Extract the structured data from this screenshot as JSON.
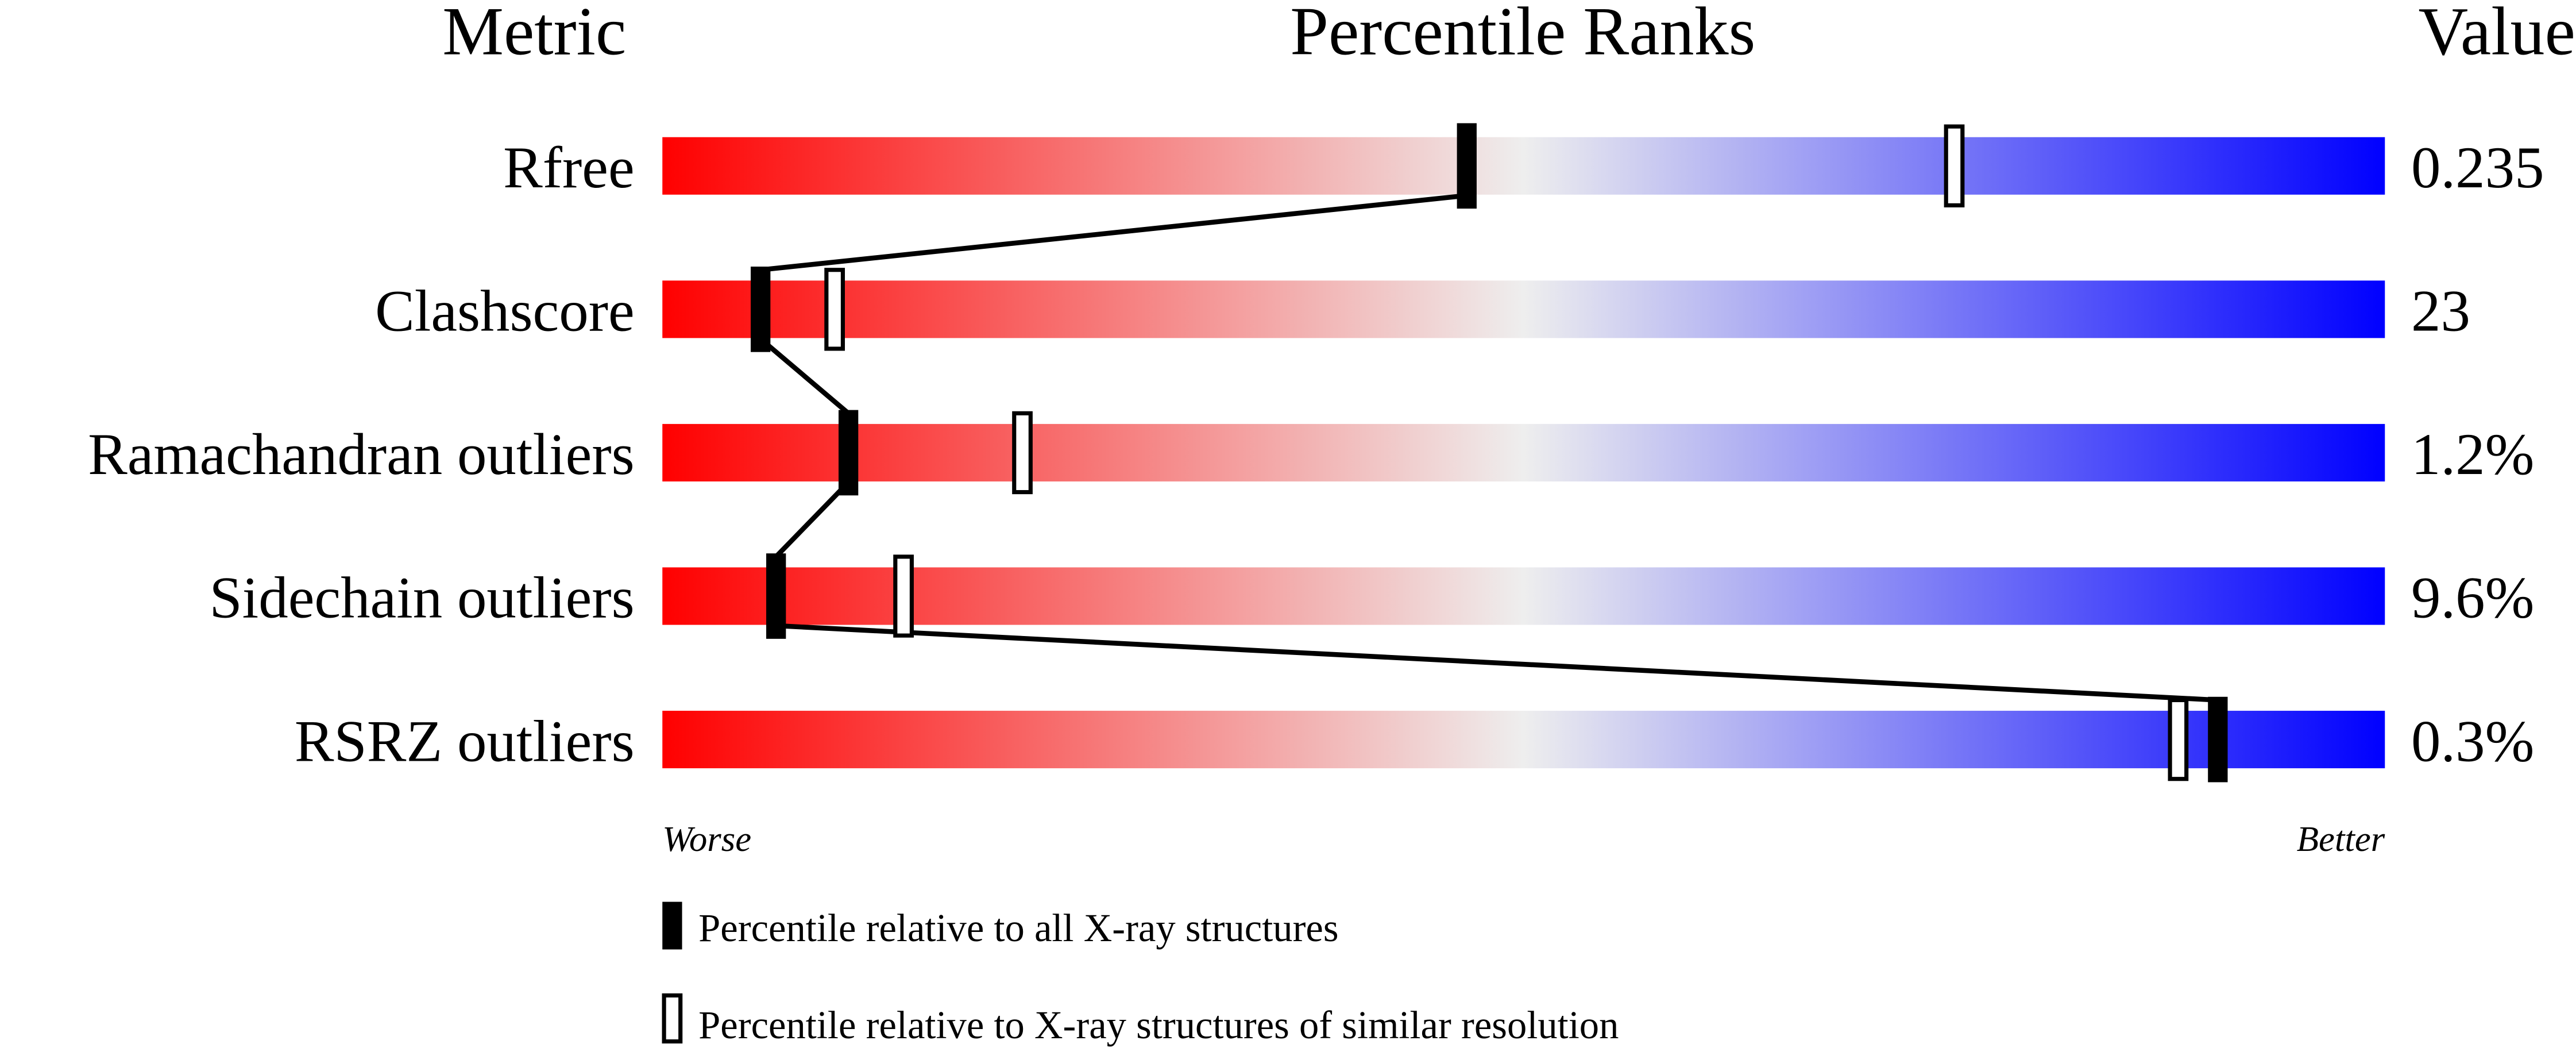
{
  "chart_data": {
    "type": "percentile-slider",
    "headers": {
      "metric": "Metric",
      "ranks": "Percentile Ranks",
      "value": "Value"
    },
    "xlim": [
      0,
      100
    ],
    "scale_labels": {
      "left": "Worse",
      "right": "Better"
    },
    "gradient_colors": {
      "worse": "#ff0000",
      "middle": "#eeeeee",
      "better": "#0000ff"
    },
    "rows": [
      {
        "metric": "Rfree",
        "value": "0.235",
        "percentile_all": 46.7,
        "percentile_similar": 75
      },
      {
        "metric": "Clashscore",
        "value": "23",
        "percentile_all": 5.7,
        "percentile_similar": 10
      },
      {
        "metric": "Ramachandran outliers",
        "value": "1.2%",
        "percentile_all": 10.8,
        "percentile_similar": 20.9
      },
      {
        "metric": "Sidechain outliers",
        "value": "9.6%",
        "percentile_all": 6.6,
        "percentile_similar": 14
      },
      {
        "metric": "RSRZ outliers",
        "value": "0.3%",
        "percentile_all": 90.3,
        "percentile_similar": 88
      }
    ],
    "legend": [
      {
        "marker": "filled",
        "label": "Percentile relative to all X-ray structures"
      },
      {
        "marker": "open",
        "label": "Percentile relative to X-ray structures of similar resolution"
      }
    ]
  }
}
